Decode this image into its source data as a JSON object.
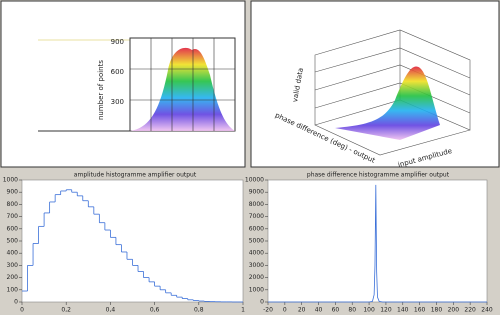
{
  "chart_data": [
    {
      "type": "surface3d",
      "ylabel": "number of points",
      "zticks": [
        900,
        600,
        300
      ]
    },
    {
      "type": "surface3d",
      "zlabel": "valid data",
      "ylabel": "phase difference (deg) - output",
      "xlabel": "input amplitude"
    },
    {
      "type": "histogram",
      "title": "amplitude histogramme amplifier output",
      "color": "#3a6fd8",
      "bins": [
        0,
        0.025,
        0.05,
        0.075,
        0.1,
        0.125,
        0.15,
        0.175,
        0.2,
        0.225,
        0.25,
        0.275,
        0.3,
        0.325,
        0.35,
        0.375,
        0.4,
        0.425,
        0.45,
        0.475,
        0.5,
        0.525,
        0.55,
        0.575,
        0.6,
        0.625,
        0.65,
        0.675,
        0.7,
        0.725,
        0.75,
        0.775,
        0.8,
        0.825,
        0.85,
        0.875,
        0.9,
        0.925,
        0.95,
        0.975,
        1
      ],
      "values": [
        90,
        300,
        480,
        620,
        730,
        820,
        880,
        910,
        920,
        900,
        870,
        830,
        780,
        720,
        650,
        590,
        530,
        470,
        410,
        350,
        300,
        250,
        200,
        165,
        130,
        100,
        75,
        55,
        40,
        28,
        18,
        12,
        8,
        5,
        3,
        2,
        1,
        1,
        0,
        0
      ],
      "xlim": [
        0,
        1
      ],
      "xticks": [
        0,
        {
          "value": 0.2,
          "label": "0,2"
        },
        {
          "value": 0.4,
          "label": "0,4"
        },
        {
          "value": 0.6,
          "label": "0,6"
        },
        {
          "value": 0.8,
          "label": "0,8"
        },
        1
      ],
      "ylim": [
        0,
        1000
      ],
      "yticks": [
        0,
        100,
        200,
        300,
        400,
        500,
        600,
        700,
        800,
        900,
        1000
      ]
    },
    {
      "type": "line",
      "title": "phase difference histogramme amplifier output",
      "color": "#3a6fd8",
      "x": [
        -20,
        100,
        104,
        106,
        107,
        108,
        109,
        110,
        112,
        116,
        240
      ],
      "values": [
        0,
        0,
        50,
        600,
        3000,
        9600,
        2500,
        400,
        50,
        0,
        0
      ],
      "xlim": [
        -20,
        240
      ],
      "xticks": [
        -20,
        0,
        20,
        40,
        60,
        80,
        100,
        120,
        140,
        160,
        180,
        200,
        220,
        240
      ],
      "ylim": [
        0,
        10000
      ],
      "yticks": [
        0,
        1000,
        2000,
        3000,
        4000,
        5000,
        6000,
        7000,
        8000,
        9000,
        10000
      ]
    }
  ]
}
